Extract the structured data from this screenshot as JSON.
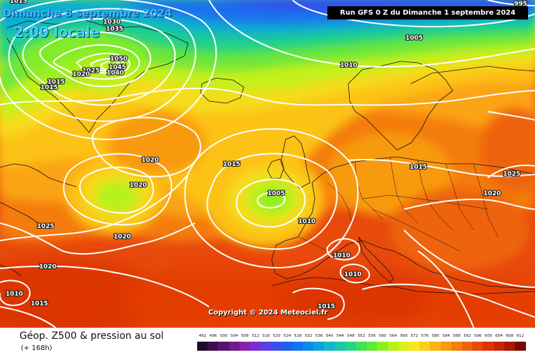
{
  "header": {
    "date_title": "Dimanche 8 septembre 2024",
    "time_title": "2:00 locale",
    "run_info": "Run GFS 0 Z du Dimanche 1 septembre 2024"
  },
  "footer": {
    "product_title": "Géop. Z500 & pression au sol",
    "lead_time": "(+ 168h)",
    "copyright": "Copyright © 2024 Meteociel.fr"
  },
  "legend": {
    "values": [
      "492",
      "496",
      "500",
      "504",
      "508",
      "512",
      "516",
      "520",
      "524",
      "528",
      "532",
      "536",
      "540",
      "544",
      "548",
      "552",
      "556",
      "560",
      "564",
      "568",
      "572",
      "576",
      "580",
      "584",
      "588",
      "592",
      "596",
      "600",
      "604",
      "608",
      "612"
    ],
    "colors": [
      "#1e0a2e",
      "#3a0f4a",
      "#55146b",
      "#6e1b8c",
      "#8a22a8",
      "#7a2ed0",
      "#5a3ee6",
      "#3a4ef0",
      "#1f5ef2",
      "#0f74f2",
      "#0a8ae8",
      "#0aa2dc",
      "#10b8c8",
      "#18c8a8",
      "#22d488",
      "#3ee05a",
      "#5ee838",
      "#8cef22",
      "#b6f21a",
      "#dcf01a",
      "#f6e81c",
      "#fcd016",
      "#fbb412",
      "#f89a0e",
      "#f47e0c",
      "#ee640a",
      "#e64a08",
      "#dc3406",
      "#c82404",
      "#aa1602",
      "#7a0a00"
    ]
  },
  "isobars": [
    {
      "label": "1035"
    },
    {
      "label": "1030"
    },
    {
      "label": "1025"
    },
    {
      "label": "1020"
    },
    {
      "label": "1015"
    },
    {
      "label": "1050"
    },
    {
      "label": "1045"
    },
    {
      "label": "1040"
    },
    {
      "label": "1015"
    },
    {
      "label": "1015"
    },
    {
      "label": "995"
    },
    {
      "label": "1005"
    },
    {
      "label": "1010"
    },
    {
      "label": "1020"
    },
    {
      "label": "1020"
    },
    {
      "label": "1015"
    },
    {
      "label": "1005"
    },
    {
      "label": "1025"
    },
    {
      "label": "1020"
    },
    {
      "label": "1010"
    },
    {
      "label": "1015"
    },
    {
      "label": "1025"
    },
    {
      "label": "1020"
    },
    {
      "label": "1020"
    },
    {
      "label": "1010"
    },
    {
      "label": "1010"
    },
    {
      "label": "1010"
    },
    {
      "label": "1015"
    },
    {
      "label": "1015"
    }
  ]
}
